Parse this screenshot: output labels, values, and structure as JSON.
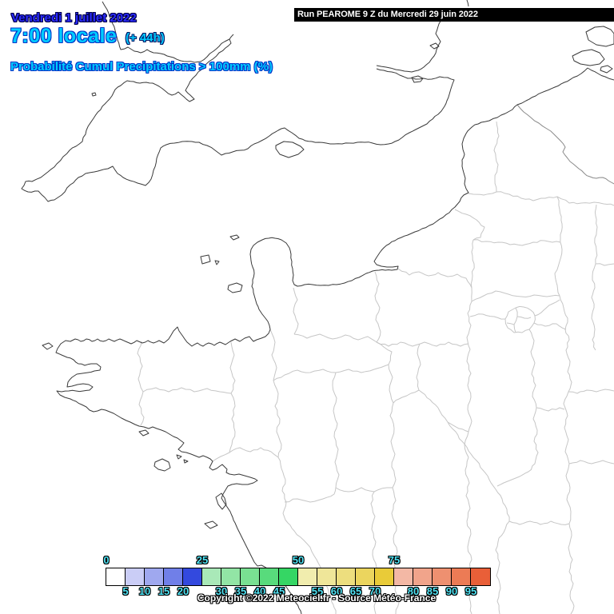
{
  "header": {
    "date": "Vendredi 1 juillet 2022",
    "time": "7:00 locale",
    "run_offset": "(+ 44h)",
    "variable": "Probabilité Cumul Precipitations > 100mm (%)"
  },
  "run_info": {
    "label": "Run PEAROME 9 Z du Mercredi 29 juin 2022"
  },
  "legend": {
    "colors": [
      "#ffffff",
      "#cacdf6",
      "#9fa8ef",
      "#707fe8",
      "#3349de",
      "#a9e9b8",
      "#92e5a5",
      "#79e092",
      "#58db7c",
      "#35d664",
      "#f1edae",
      "#efe699",
      "#edde7e",
      "#ebd55e",
      "#e9cb38",
      "#f3b8a5",
      "#f1a48b",
      "#ee9070",
      "#ec7b55",
      "#e95f38"
    ],
    "ticks": [
      {
        "label": "0",
        "index": 0,
        "row": "top"
      },
      {
        "label": "5",
        "index": 1,
        "row": "bottom"
      },
      {
        "label": "10",
        "index": 2,
        "row": "bottom"
      },
      {
        "label": "15",
        "index": 3,
        "row": "bottom"
      },
      {
        "label": "20",
        "index": 4,
        "row": "bottom"
      },
      {
        "label": "25",
        "index": 5,
        "row": "top"
      },
      {
        "label": "30",
        "index": 6,
        "row": "bottom"
      },
      {
        "label": "35",
        "index": 7,
        "row": "bottom"
      },
      {
        "label": "40",
        "index": 8,
        "row": "bottom"
      },
      {
        "label": "45",
        "index": 9,
        "row": "bottom"
      },
      {
        "label": "50",
        "index": 10,
        "row": "top"
      },
      {
        "label": "55",
        "index": 11,
        "row": "bottom"
      },
      {
        "label": "60",
        "index": 12,
        "row": "bottom"
      },
      {
        "label": "65",
        "index": 13,
        "row": "bottom"
      },
      {
        "label": "70",
        "index": 14,
        "row": "bottom"
      },
      {
        "label": "75",
        "index": 15,
        "row": "top"
      },
      {
        "label": "80",
        "index": 16,
        "row": "bottom"
      },
      {
        "label": "85",
        "index": 17,
        "row": "bottom"
      },
      {
        "label": "90",
        "index": 18,
        "row": "bottom"
      },
      {
        "label": "95",
        "index": 19,
        "row": "bottom"
      }
    ]
  },
  "footer": {
    "copyright": "Copyright ©2022 Meteociel.fr - Source Météo-France"
  },
  "colors": {
    "date_fill": "#2b2bff",
    "date_outline": "#000046",
    "cyan_fill": "#00ccff",
    "cyan_outline": "#0035c8",
    "offset_outline": "#001866",
    "tick_fill": "#4fe3f4",
    "run_bar_bg": "#000000",
    "run_bar_text": "#ffffff",
    "coast": "#3a3a3a",
    "department": "#c6c6c6",
    "country_border": "#8a8a8a"
  }
}
